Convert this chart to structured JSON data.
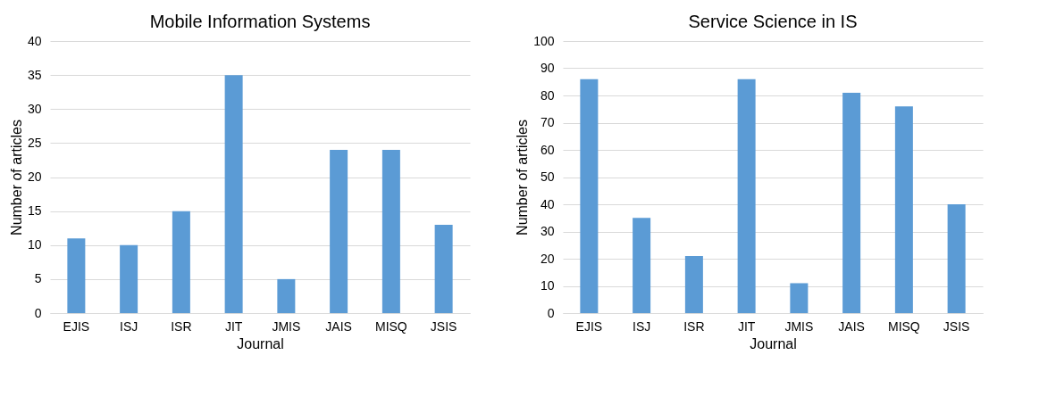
{
  "chart_data": [
    {
      "type": "bar",
      "title": "Mobile Information Systems",
      "xlabel": "Journal",
      "ylabel": "Number of articles",
      "categories": [
        "EJIS",
        "ISJ",
        "ISR",
        "JIT",
        "JMIS",
        "JAIS",
        "MISQ",
        "JSIS"
      ],
      "values": [
        11,
        10,
        15,
        35,
        5,
        24,
        24,
        13
      ],
      "color": "#5b9bd5",
      "ylim": [
        0,
        40
      ],
      "yticks": [
        0,
        5,
        10,
        15,
        20,
        25,
        30,
        35,
        40
      ],
      "grid": "y"
    },
    {
      "type": "bar",
      "title": "Service Science in IS",
      "xlabel": "Journal",
      "ylabel": "Number of articles",
      "categories": [
        "EJIS",
        "ISJ",
        "ISR",
        "JIT",
        "JMIS",
        "JAIS",
        "MISQ",
        "JSIS"
      ],
      "values": [
        86,
        35,
        21,
        86,
        11,
        81,
        76,
        40
      ],
      "color": "#5b9bd5",
      "ylim": [
        0,
        100
      ],
      "yticks": [
        0,
        10,
        20,
        30,
        40,
        50,
        60,
        70,
        80,
        90,
        100
      ],
      "grid": "y"
    }
  ]
}
